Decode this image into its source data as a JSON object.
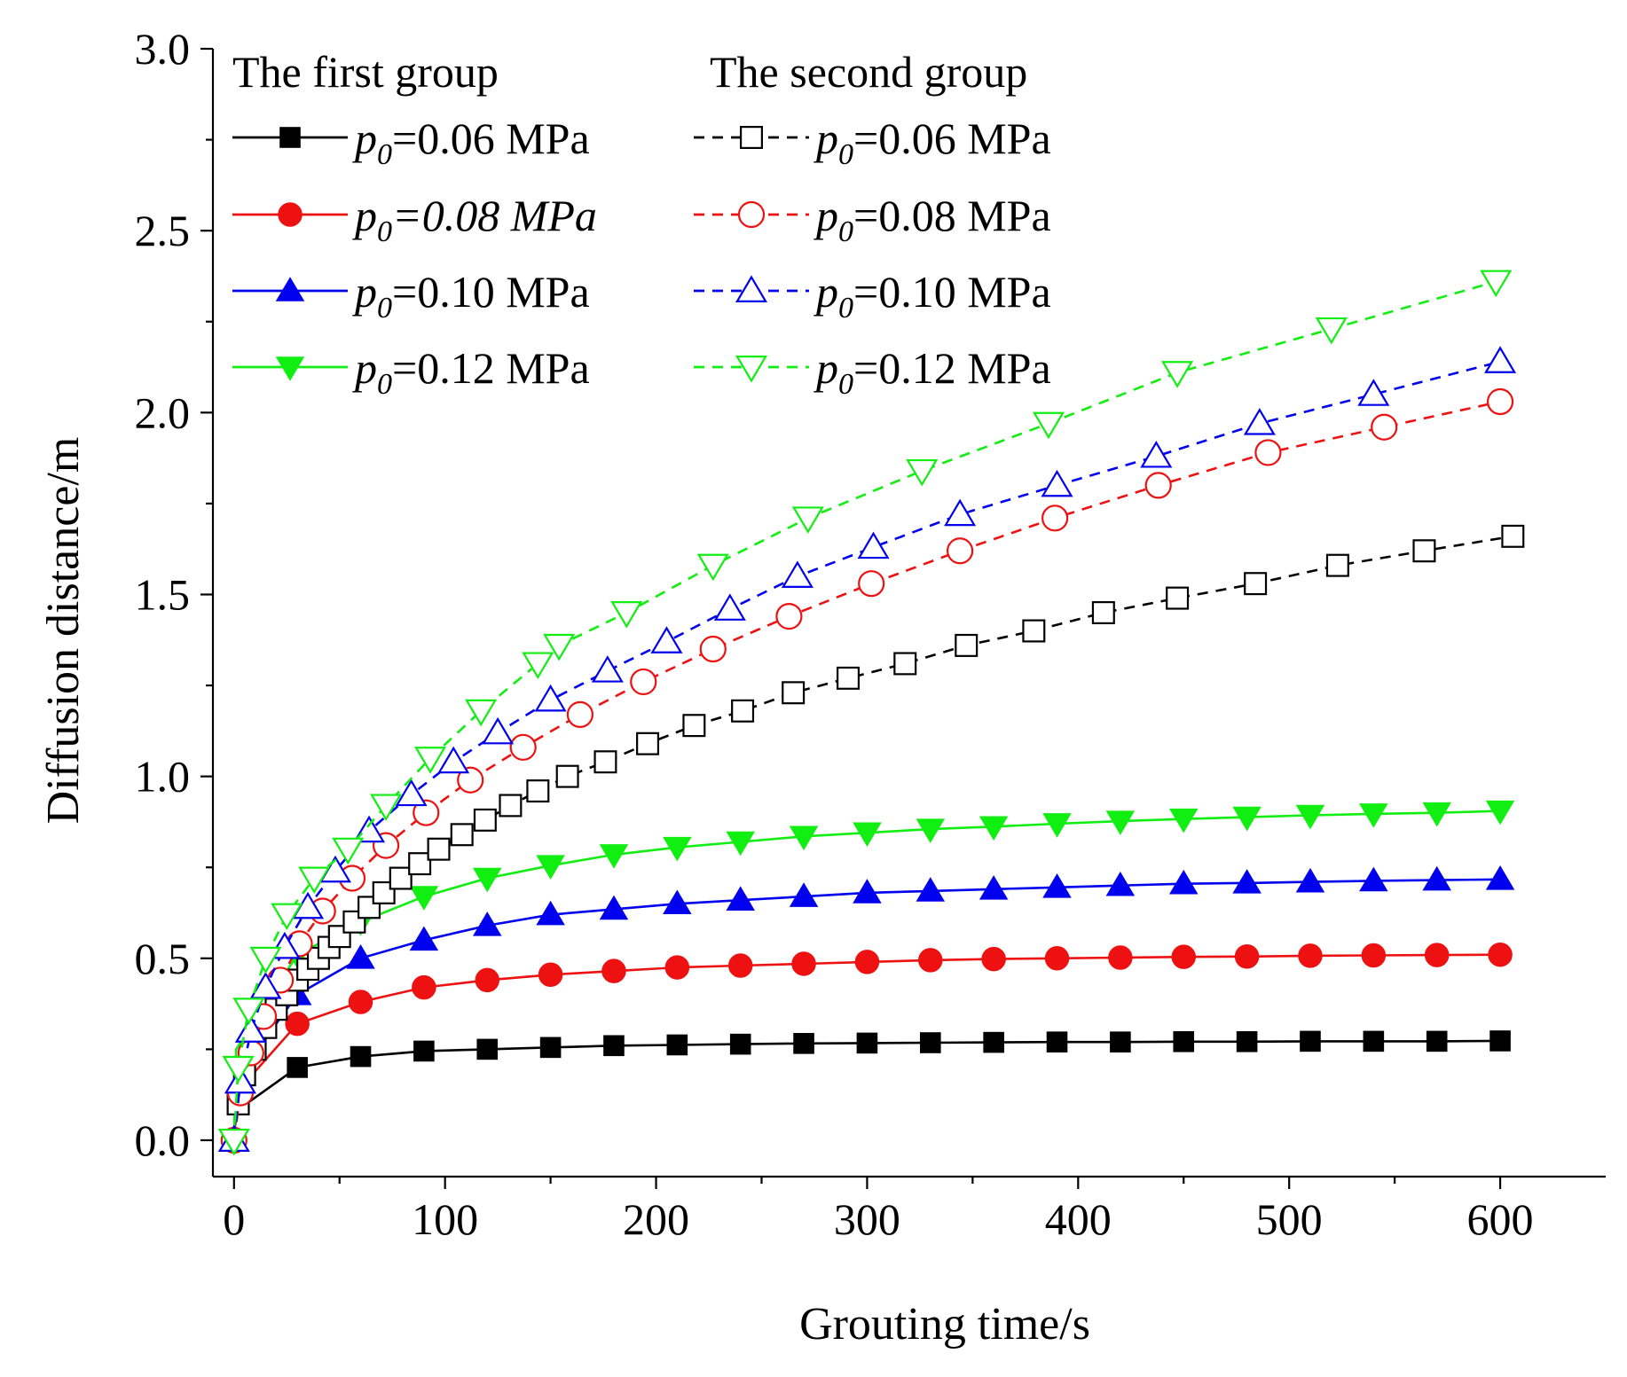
{
  "chart_data": {
    "type": "line",
    "xlabel": "Grouting time/s",
    "ylabel": "Diffusion distance/m",
    "xlim": [
      -10,
      650
    ],
    "ylim": [
      -0.1,
      3.0
    ],
    "xticks": [
      0,
      100,
      200,
      300,
      400,
      500,
      600
    ],
    "xtick_labels": [
      "0",
      "100",
      "200",
      "300",
      "400",
      "500",
      "600"
    ],
    "yticks": [
      0.0,
      0.5,
      1.0,
      1.5,
      2.0,
      2.5,
      3.0
    ],
    "ytick_labels": [
      "0.0",
      "0.5",
      "1.0",
      "1.5",
      "2.0",
      "2.5",
      "3.0"
    ],
    "grid": false,
    "legend": {
      "placement": "top-left",
      "group_titles": [
        "The first group",
        "The second group"
      ]
    },
    "series": [
      {
        "name": "p0=0.06 MPa",
        "label_prefix": "p",
        "label_sub": "0",
        "label_rest": "=0.06 MPa",
        "label_italic": false,
        "group": 1,
        "color": "#000000",
        "marker": "square",
        "filled": true,
        "dashed": false,
        "x": [
          0,
          1,
          30,
          60,
          90,
          120,
          150,
          180,
          210,
          240,
          270,
          300,
          330,
          360,
          390,
          420,
          450,
          480,
          510,
          540,
          570,
          600
        ],
        "y": [
          0.0,
          0.08,
          0.2,
          0.23,
          0.245,
          0.25,
          0.255,
          0.26,
          0.262,
          0.264,
          0.266,
          0.267,
          0.268,
          0.269,
          0.27,
          0.27,
          0.271,
          0.271,
          0.272,
          0.272,
          0.272,
          0.273
        ]
      },
      {
        "name": "p0=0.08 MPa",
        "label_prefix": "p",
        "label_sub": "0",
        "label_rest": "=0.08 MPa",
        "label_italic": true,
        "group": 1,
        "color": "#ee1111",
        "marker": "circle",
        "filled": true,
        "dashed": false,
        "x": [
          0,
          1,
          30,
          60,
          90,
          120,
          150,
          180,
          210,
          240,
          270,
          300,
          330,
          360,
          390,
          420,
          450,
          480,
          510,
          540,
          570,
          600
        ],
        "y": [
          0.0,
          0.13,
          0.32,
          0.38,
          0.42,
          0.44,
          0.455,
          0.465,
          0.475,
          0.48,
          0.485,
          0.49,
          0.495,
          0.498,
          0.5,
          0.502,
          0.504,
          0.505,
          0.507,
          0.508,
          0.509,
          0.51
        ]
      },
      {
        "name": "p0=0.10 MPa",
        "label_prefix": "p",
        "label_sub": "0",
        "label_rest": "=0.10 MPa",
        "label_italic": false,
        "group": 1,
        "color": "#0000ee",
        "marker": "triangle-up",
        "filled": true,
        "dashed": false,
        "x": [
          0,
          1,
          30,
          60,
          90,
          120,
          150,
          180,
          210,
          240,
          270,
          300,
          330,
          360,
          390,
          420,
          450,
          480,
          510,
          540,
          570,
          600
        ],
        "y": [
          0.0,
          0.17,
          0.4,
          0.5,
          0.55,
          0.59,
          0.62,
          0.635,
          0.65,
          0.66,
          0.67,
          0.68,
          0.685,
          0.69,
          0.695,
          0.7,
          0.705,
          0.707,
          0.71,
          0.713,
          0.715,
          0.717
        ]
      },
      {
        "name": "p0=0.12 MPa",
        "label_prefix": "p",
        "label_sub": "0",
        "label_rest": "=0.12 MPa",
        "label_italic": false,
        "group": 1,
        "color": "#11ee11",
        "marker": "triangle-down",
        "filled": true,
        "dashed": false,
        "x": [
          0,
          1,
          30,
          60,
          90,
          120,
          150,
          180,
          210,
          240,
          270,
          300,
          330,
          360,
          390,
          420,
          450,
          480,
          510,
          540,
          570,
          600
        ],
        "y": [
          0.0,
          0.25,
          0.51,
          0.6,
          0.67,
          0.72,
          0.755,
          0.785,
          0.805,
          0.82,
          0.835,
          0.845,
          0.855,
          0.862,
          0.87,
          0.877,
          0.883,
          0.888,
          0.893,
          0.897,
          0.9,
          0.905
        ]
      },
      {
        "name": "p0=0.06 MPa",
        "label_prefix": "p",
        "label_sub": "0",
        "label_rest": "=0.06 MPa",
        "label_italic": false,
        "group": 2,
        "color": "#000000",
        "marker": "square",
        "filled": false,
        "dashed": true,
        "x": [
          0,
          2,
          5,
          10,
          15,
          20,
          25,
          30,
          35,
          40,
          45,
          50,
          57,
          64,
          71,
          79,
          88,
          97,
          108,
          119,
          131,
          144,
          158,
          176,
          196,
          218,
          241,
          265,
          291,
          318,
          347,
          379,
          412,
          447,
          484,
          523,
          564,
          606
        ],
        "y": [
          0.0,
          0.1,
          0.18,
          0.25,
          0.31,
          0.36,
          0.4,
          0.44,
          0.47,
          0.5,
          0.53,
          0.56,
          0.6,
          0.64,
          0.68,
          0.72,
          0.76,
          0.8,
          0.84,
          0.88,
          0.92,
          0.96,
          1.0,
          1.04,
          1.09,
          1.14,
          1.18,
          1.23,
          1.27,
          1.31,
          1.36,
          1.4,
          1.45,
          1.49,
          1.53,
          1.58,
          1.62,
          1.66
        ]
      },
      {
        "name": "p0=0.08 MPa",
        "label_prefix": "p",
        "label_sub": "0",
        "label_rest": "=0.08 MPa",
        "label_italic": false,
        "group": 2,
        "color": "#ee1111",
        "marker": "circle",
        "filled": false,
        "dashed": true,
        "x": [
          0,
          3,
          8,
          14,
          22,
          31,
          42,
          56,
          72,
          91,
          112,
          137,
          164,
          194,
          227,
          263,
          302,
          344,
          389,
          438,
          490,
          545,
          600
        ],
        "y": [
          0.0,
          0.13,
          0.24,
          0.34,
          0.44,
          0.54,
          0.63,
          0.72,
          0.81,
          0.9,
          0.99,
          1.08,
          1.17,
          1.26,
          1.35,
          1.44,
          1.53,
          1.62,
          1.71,
          1.8,
          1.89,
          1.96,
          2.03
        ]
      },
      {
        "name": "p0=0.10 MPa",
        "label_prefix": "p",
        "label_sub": "0",
        "label_rest": "=0.10 MPa",
        "label_italic": false,
        "group": 2,
        "color": "#0000ee",
        "marker": "triangle-up",
        "filled": false,
        "dashed": true,
        "x": [
          0,
          3,
          8,
          15,
          24,
          35,
          48,
          64,
          84,
          104,
          125,
          150,
          177,
          205,
          235,
          267,
          303,
          344,
          390,
          437,
          486,
          540,
          600
        ],
        "y": [
          0.0,
          0.16,
          0.3,
          0.42,
          0.53,
          0.64,
          0.74,
          0.85,
          0.95,
          1.04,
          1.12,
          1.21,
          1.29,
          1.37,
          1.46,
          1.55,
          1.63,
          1.72,
          1.8,
          1.88,
          1.97,
          2.05,
          2.14
        ]
      },
      {
        "name": "p0=0.12 MPa",
        "label_prefix": "p",
        "label_sub": "0",
        "label_rest": "=0.12 MPa",
        "label_italic": false,
        "group": 2,
        "color": "#11ee11",
        "marker": "triangle-down",
        "filled": false,
        "dashed": true,
        "x": [
          0,
          2,
          7,
          15,
          25,
          38,
          54,
          72,
          93,
          117,
          144,
          154,
          186,
          227,
          272,
          326,
          386,
          447,
          520,
          598
        ],
        "y": [
          0.0,
          0.2,
          0.36,
          0.5,
          0.62,
          0.72,
          0.8,
          0.92,
          1.05,
          1.18,
          1.31,
          1.36,
          1.45,
          1.58,
          1.71,
          1.84,
          1.97,
          2.11,
          2.23,
          2.36
        ]
      }
    ]
  }
}
